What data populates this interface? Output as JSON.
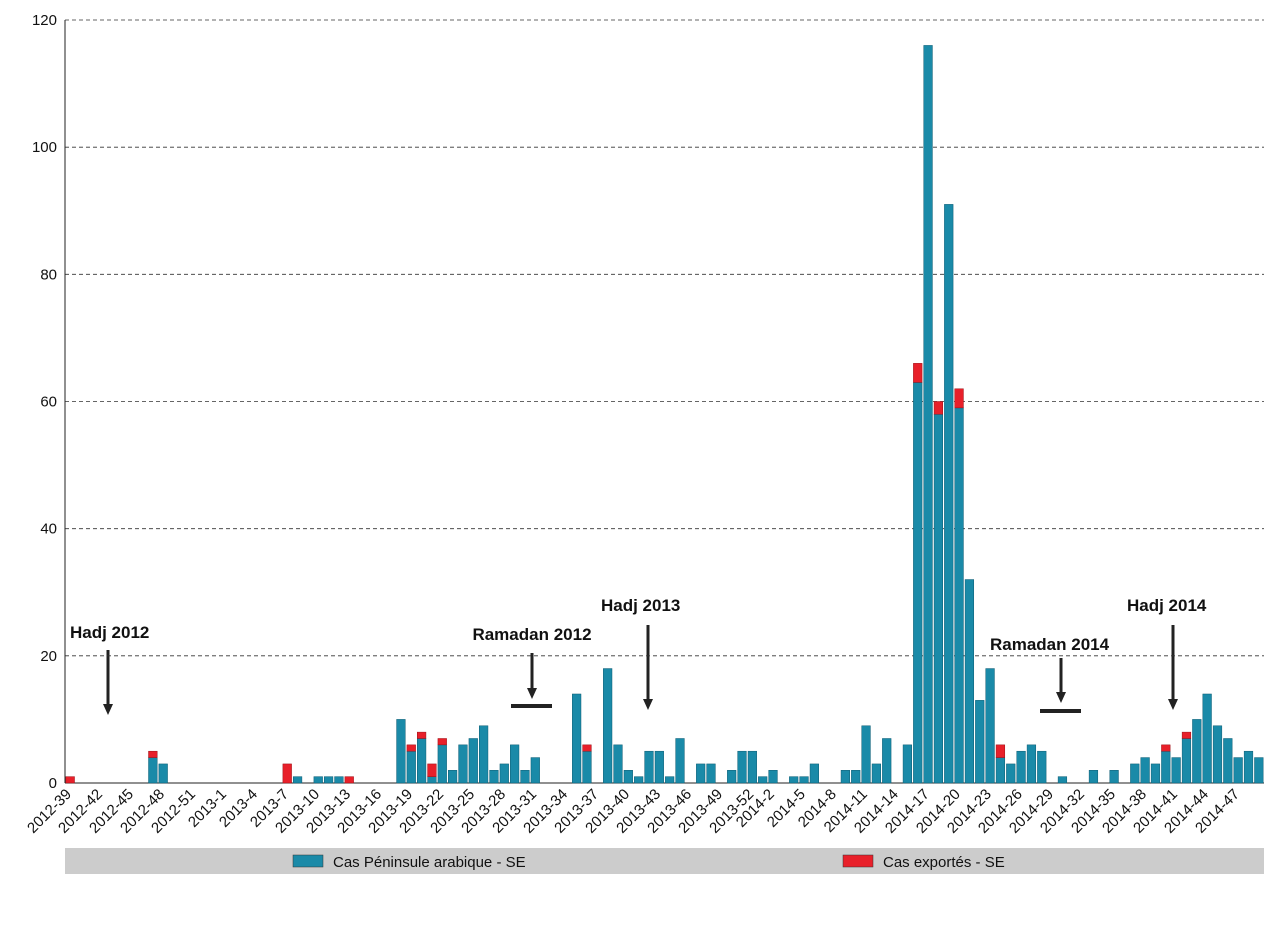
{
  "chart_data": {
    "type": "stacked-bar",
    "categories": [
      "2012-39",
      null,
      null,
      "2012-42",
      null,
      null,
      "2012-45",
      null,
      null,
      "2012-48",
      null,
      null,
      "2012-51",
      null,
      null,
      "2013-1",
      null,
      null,
      "2013-4",
      null,
      null,
      "2013-7",
      null,
      null,
      "2013-10",
      null,
      null,
      "2013-13",
      null,
      null,
      "2013-16",
      null,
      null,
      "2013-19",
      null,
      null,
      "2013-22",
      null,
      null,
      "2013-25",
      null,
      null,
      "2013-28",
      null,
      null,
      "2013-31",
      null,
      null,
      "2013-34",
      null,
      null,
      "2013-37",
      null,
      null,
      "2013-40",
      null,
      null,
      "2013-43",
      null,
      null,
      "2013-46",
      null,
      null,
      "2013-49",
      null,
      null,
      "2013-52",
      null,
      "2014-2",
      null,
      null,
      "2014-5",
      null,
      null,
      "2014-8",
      null,
      null,
      "2014-11",
      null,
      null,
      "2014-14",
      null,
      null,
      "2014-17",
      null,
      null,
      "2014-20",
      null,
      null,
      "2014-23",
      null,
      null,
      "2014-26",
      null,
      null,
      "2014-29",
      null,
      null,
      "2014-32",
      null,
      null,
      "2014-35",
      null,
      null,
      "2014-38",
      null,
      null,
      "2014-41",
      null,
      null,
      "2014-44",
      null,
      null,
      "2014-47",
      null,
      null
    ],
    "series": [
      {
        "name": "Cas Péninsule arabique - SE",
        "color": "#1a8aa8",
        "values": [
          0,
          0,
          0,
          0,
          0,
          0,
          0,
          0,
          4,
          3,
          0,
          0,
          0,
          0,
          0,
          0,
          0,
          0,
          0,
          0,
          0,
          0,
          1,
          0,
          1,
          1,
          1,
          0,
          0,
          0,
          0,
          0,
          10,
          5,
          7,
          1,
          6,
          2,
          6,
          7,
          9,
          2,
          3,
          6,
          2,
          4,
          0,
          0,
          0,
          14,
          5,
          0,
          18,
          6,
          2,
          1,
          5,
          5,
          1,
          7,
          0,
          3,
          3,
          0,
          2,
          5,
          5,
          1,
          2,
          0,
          1,
          1,
          3,
          0,
          0,
          2,
          2,
          9,
          3,
          7,
          0,
          6,
          63,
          116,
          58,
          91,
          59,
          32,
          13,
          18,
          4,
          3,
          5,
          6,
          5,
          0,
          1,
          0,
          0,
          2,
          0,
          2,
          0,
          3,
          4,
          3,
          5,
          4,
          7,
          10,
          14,
          9,
          7,
          4,
          5,
          4
        ]
      },
      {
        "name": "Cas exportés - SE",
        "color": "#e8202a",
        "values": [
          1,
          0,
          0,
          0,
          0,
          0,
          0,
          0,
          1,
          0,
          0,
          0,
          0,
          0,
          0,
          0,
          0,
          0,
          0,
          0,
          0,
          3,
          0,
          0,
          0,
          0,
          0,
          1,
          0,
          0,
          0,
          0,
          0,
          1,
          1,
          2,
          1,
          0,
          0,
          0,
          0,
          0,
          0,
          0,
          0,
          0,
          0,
          0,
          0,
          0,
          1,
          0,
          0,
          0,
          0,
          0,
          0,
          0,
          0,
          0,
          0,
          0,
          0,
          0,
          0,
          0,
          0,
          0,
          0,
          0,
          0,
          0,
          0,
          0,
          0,
          0,
          0,
          0,
          0,
          0,
          0,
          0,
          3,
          0,
          2,
          0,
          3,
          0,
          0,
          0,
          2,
          0,
          0,
          0,
          0,
          0,
          0,
          0,
          0,
          0,
          0,
          0,
          0,
          0,
          0,
          0,
          1,
          0,
          1,
          0,
          0,
          0,
          0,
          0,
          0,
          0
        ]
      }
    ],
    "annotations": [
      "Hadj 2012",
      "Ramadan 2012",
      "Hadj 2013",
      "Ramadan 2014",
      "Hadj 2014"
    ],
    "ylim": [
      0,
      120
    ],
    "yticks": [
      0,
      20,
      40,
      60,
      80,
      100,
      120
    ],
    "grid": true
  }
}
